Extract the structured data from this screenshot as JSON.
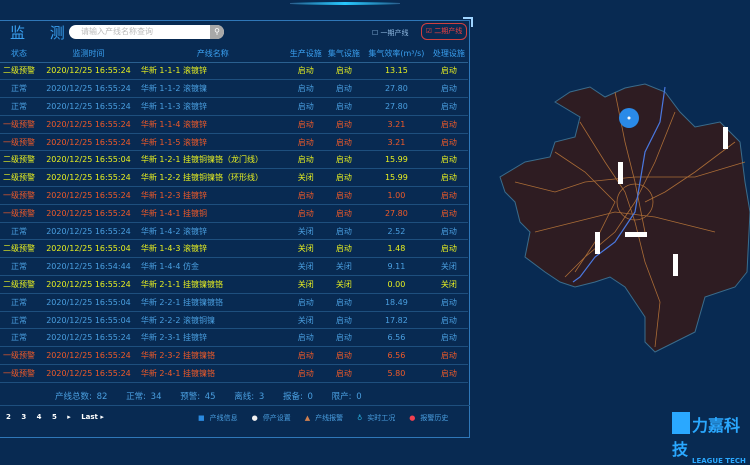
{
  "header": {
    "title": "监 测",
    "search_placeholder": "请输入产线名称查询",
    "search_icon": "search-icon",
    "filter1": "一期产线",
    "filter2": "二期产线"
  },
  "colors": {
    "warning2": "#e8f020",
    "warning1": "#f05a28",
    "normal": "#4a9fe0",
    "background": "#082a52",
    "map_fill": "#2e1c22"
  },
  "table": {
    "columns": [
      "状态",
      "监测时间",
      "产线名称",
      "生产设施",
      "集气设施",
      "集气效率(m³/s)",
      "处理设施"
    ],
    "rows": [
      [
        "二级预警",
        "2020/12/25 16:55:24",
        "华新 1-1-1 滚镀锌",
        "启动",
        "启动",
        "13.15",
        "启动",
        "y"
      ],
      [
        "正常",
        "2020/12/25 16:55:24",
        "华新 1-1-2 滚镀镍",
        "启动",
        "启动",
        "27.80",
        "启动",
        "n"
      ],
      [
        "正常",
        "2020/12/25 16:55:24",
        "华新 1-1-3 滚镀锌",
        "启动",
        "启动",
        "27.80",
        "启动",
        "n"
      ],
      [
        "一级预警",
        "2020/12/25 16:55:24",
        "华新 1-1-4 滚镀锌",
        "启动",
        "启动",
        "3.21",
        "启动",
        "o"
      ],
      [
        "一级预警",
        "2020/12/25 16:55:24",
        "华新 1-1-5 滚镀锌",
        "启动",
        "启动",
        "3.21",
        "启动",
        "o"
      ],
      [
        "二级预警",
        "2020/12/25 16:55:04",
        "华新 1-2-1 挂镀铜镍铬（龙门线）",
        "启动",
        "启动",
        "15.99",
        "启动",
        "y"
      ],
      [
        "二级预警",
        "2020/12/25 16:55:24",
        "华新 1-2-2 挂镀铜镍铬（环形线）",
        "关闭",
        "启动",
        "15.99",
        "启动",
        "y"
      ],
      [
        "一级预警",
        "2020/12/25 16:55:24",
        "华新 1-2-3 挂镀锌",
        "启动",
        "启动",
        "1.00",
        "启动",
        "o"
      ],
      [
        "一级预警",
        "2020/12/25 16:55:24",
        "华新 1-4-1 挂镀铜",
        "启动",
        "启动",
        "27.80",
        "启动",
        "o"
      ],
      [
        "正常",
        "2020/12/25 16:55:24",
        "华新 1-4-2 滚镀锌",
        "关闭",
        "启动",
        "2.52",
        "启动",
        "n"
      ],
      [
        "二级预警",
        "2020/12/25 16:55:04",
        "华新 1-4-3 滚镀锌",
        "关闭",
        "启动",
        "1.48",
        "启动",
        "y"
      ],
      [
        "正常",
        "2020/12/25 16:54:44",
        "华新 1-4-4 仿金",
        "关闭",
        "关闭",
        "9.11",
        "关闭",
        "n"
      ],
      [
        "二级预警",
        "2020/12/25 16:55:24",
        "华新 2-1-1 挂镀镍镀铬",
        "关闭",
        "关闭",
        "0.00",
        "关闭",
        "y"
      ],
      [
        "正常",
        "2020/12/25 16:55:04",
        "华新 2-2-1 挂镀镍镀铬",
        "启动",
        "启动",
        "18.49",
        "启动",
        "n"
      ],
      [
        "正常",
        "2020/12/25 16:55:04",
        "华新 2-2-2 滚镀铜镍",
        "关闭",
        "启动",
        "17.82",
        "启动",
        "n"
      ],
      [
        "正常",
        "2020/12/25 16:55:24",
        "华新 2-3-1 挂镀锌",
        "启动",
        "启动",
        "6.56",
        "启动",
        "n"
      ],
      [
        "一级预警",
        "2020/12/25 16:55:24",
        "华新 2-3-2 挂镀镍铬",
        "启动",
        "启动",
        "6.56",
        "启动",
        "o"
      ],
      [
        "一级预警",
        "2020/12/25 16:55:24",
        "华新 2-4-1 挂镀镍铬",
        "启动",
        "启动",
        "5.80",
        "启动",
        "o"
      ]
    ]
  },
  "summary": {
    "total": "产线总数: 82",
    "normal": "正常: 34",
    "warning": "预警: 45",
    "offline": "离线: 3",
    "standby": "报备: 0",
    "stopped": "限产: 0"
  },
  "pager": {
    "pages": [
      "2",
      "3",
      "4",
      "5"
    ],
    "next": "▸",
    "last": "Last ▸"
  },
  "legend": [
    {
      "icon": "info-icon",
      "glyph": "■",
      "color": "#2a8ae0",
      "label": "产线信息"
    },
    {
      "icon": "stop-icon",
      "glyph": "●",
      "color": "#f0f0f0",
      "label": "停产设置"
    },
    {
      "icon": "warning-icon",
      "glyph": "▲",
      "color": "#d08050",
      "label": "产线报警"
    },
    {
      "icon": "status-icon",
      "glyph": "♁",
      "color": "#2ab0e0",
      "label": "实时工况"
    },
    {
      "icon": "history-icon",
      "glyph": "●",
      "color": "#f04050",
      "label": "报警历史"
    }
  ],
  "logo": {
    "cn": "力嘉科技",
    "en": "LEAGUE TECH"
  }
}
